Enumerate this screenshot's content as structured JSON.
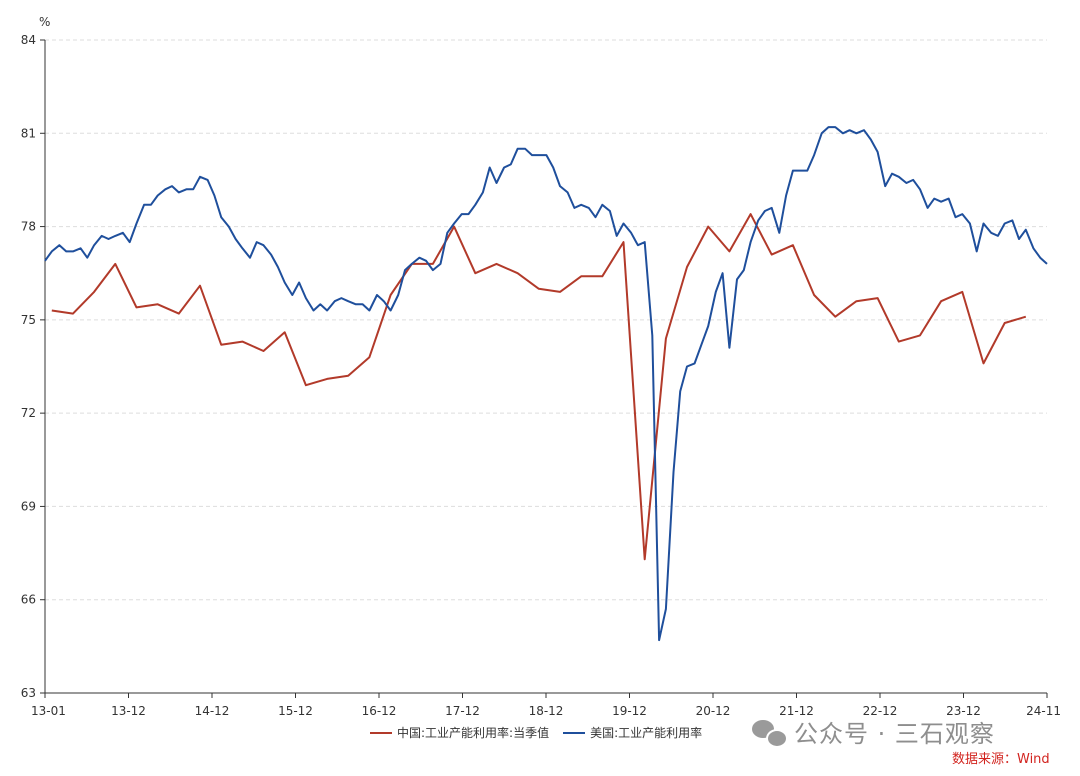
{
  "chart_data": {
    "type": "line",
    "y_unit": "%",
    "ylim": [
      63,
      84
    ],
    "yticks": [
      63,
      66,
      69,
      72,
      75,
      78,
      81,
      84
    ],
    "xticks": [
      "13-01",
      "13-12",
      "14-12",
      "15-12",
      "16-12",
      "17-12",
      "18-12",
      "19-12",
      "20-12",
      "21-12",
      "22-12",
      "23-12",
      "24-11"
    ],
    "grid": true,
    "legend_position": "bottom",
    "colors": {
      "china": "#b23a2a",
      "us": "#1f4f9c"
    },
    "series": [
      {
        "name": "中国:工业产能利用率:当季值",
        "key": "china",
        "points": [
          [
            2013.08,
            75.3
          ],
          [
            2013.33,
            75.2
          ],
          [
            2013.58,
            75.9
          ],
          [
            2013.83,
            76.8
          ],
          [
            2014.08,
            75.4
          ],
          [
            2014.33,
            75.5
          ],
          [
            2014.58,
            75.2
          ],
          [
            2014.83,
            76.1
          ],
          [
            2015.08,
            74.2
          ],
          [
            2015.33,
            74.3
          ],
          [
            2015.58,
            74.0
          ],
          [
            2015.83,
            74.6
          ],
          [
            2016.08,
            72.9
          ],
          [
            2016.33,
            73.1
          ],
          [
            2016.58,
            73.2
          ],
          [
            2016.83,
            73.8
          ],
          [
            2017.08,
            75.8
          ],
          [
            2017.33,
            76.8
          ],
          [
            2017.58,
            76.8
          ],
          [
            2017.83,
            78.0
          ],
          [
            2018.08,
            76.5
          ],
          [
            2018.33,
            76.8
          ],
          [
            2018.58,
            76.5
          ],
          [
            2018.83,
            76.0
          ],
          [
            2019.08,
            75.9
          ],
          [
            2019.33,
            76.4
          ],
          [
            2019.58,
            76.4
          ],
          [
            2019.83,
            77.5
          ],
          [
            2020.08,
            67.3
          ],
          [
            2020.33,
            74.4
          ],
          [
            2020.58,
            76.7
          ],
          [
            2020.83,
            78.0
          ],
          [
            2021.08,
            77.2
          ],
          [
            2021.33,
            78.4
          ],
          [
            2021.58,
            77.1
          ],
          [
            2021.83,
            77.4
          ],
          [
            2022.08,
            75.8
          ],
          [
            2022.33,
            75.1
          ],
          [
            2022.58,
            75.6
          ],
          [
            2022.83,
            75.7
          ],
          [
            2023.08,
            74.3
          ],
          [
            2023.33,
            74.5
          ],
          [
            2023.58,
            75.6
          ],
          [
            2023.83,
            75.9
          ],
          [
            2024.08,
            73.6
          ],
          [
            2024.33,
            74.9
          ],
          [
            2024.58,
            75.1
          ]
        ]
      },
      {
        "name": "美国:工业产能利用率",
        "key": "us",
        "points": [
          [
            2013.0,
            76.9
          ],
          [
            2013.08,
            77.2
          ],
          [
            2013.17,
            77.4
          ],
          [
            2013.25,
            77.2
          ],
          [
            2013.33,
            77.2
          ],
          [
            2013.42,
            77.3
          ],
          [
            2013.5,
            77.0
          ],
          [
            2013.58,
            77.4
          ],
          [
            2013.67,
            77.7
          ],
          [
            2013.75,
            77.6
          ],
          [
            2013.83,
            77.7
          ],
          [
            2013.92,
            77.8
          ],
          [
            2014.0,
            77.5
          ],
          [
            2014.08,
            78.1
          ],
          [
            2014.17,
            78.7
          ],
          [
            2014.25,
            78.7
          ],
          [
            2014.33,
            79.0
          ],
          [
            2014.42,
            79.2
          ],
          [
            2014.5,
            79.3
          ],
          [
            2014.58,
            79.1
          ],
          [
            2014.67,
            79.2
          ],
          [
            2014.75,
            79.2
          ],
          [
            2014.83,
            79.6
          ],
          [
            2014.92,
            79.5
          ],
          [
            2015.0,
            79.0
          ],
          [
            2015.08,
            78.3
          ],
          [
            2015.17,
            78.0
          ],
          [
            2015.25,
            77.6
          ],
          [
            2015.33,
            77.3
          ],
          [
            2015.42,
            77.0
          ],
          [
            2015.5,
            77.5
          ],
          [
            2015.58,
            77.4
          ],
          [
            2015.67,
            77.1
          ],
          [
            2015.75,
            76.7
          ],
          [
            2015.83,
            76.2
          ],
          [
            2015.92,
            75.8
          ],
          [
            2016.0,
            76.2
          ],
          [
            2016.08,
            75.7
          ],
          [
            2016.17,
            75.3
          ],
          [
            2016.25,
            75.5
          ],
          [
            2016.33,
            75.3
          ],
          [
            2016.42,
            75.6
          ],
          [
            2016.5,
            75.7
          ],
          [
            2016.58,
            75.6
          ],
          [
            2016.67,
            75.5
          ],
          [
            2016.75,
            75.5
          ],
          [
            2016.83,
            75.3
          ],
          [
            2016.92,
            75.8
          ],
          [
            2017.0,
            75.6
          ],
          [
            2017.08,
            75.3
          ],
          [
            2017.17,
            75.8
          ],
          [
            2017.25,
            76.6
          ],
          [
            2017.33,
            76.8
          ],
          [
            2017.42,
            77.0
          ],
          [
            2017.5,
            76.9
          ],
          [
            2017.58,
            76.6
          ],
          [
            2017.67,
            76.8
          ],
          [
            2017.75,
            77.8
          ],
          [
            2017.83,
            78.1
          ],
          [
            2017.92,
            78.4
          ],
          [
            2018.0,
            78.4
          ],
          [
            2018.08,
            78.7
          ],
          [
            2018.17,
            79.1
          ],
          [
            2018.25,
            79.9
          ],
          [
            2018.33,
            79.4
          ],
          [
            2018.42,
            79.9
          ],
          [
            2018.5,
            80.0
          ],
          [
            2018.58,
            80.5
          ],
          [
            2018.67,
            80.5
          ],
          [
            2018.75,
            80.3
          ],
          [
            2018.83,
            80.3
          ],
          [
            2018.92,
            80.3
          ],
          [
            2019.0,
            79.9
          ],
          [
            2019.08,
            79.3
          ],
          [
            2019.17,
            79.1
          ],
          [
            2019.25,
            78.6
          ],
          [
            2019.33,
            78.7
          ],
          [
            2019.42,
            78.6
          ],
          [
            2019.5,
            78.3
          ],
          [
            2019.58,
            78.7
          ],
          [
            2019.67,
            78.5
          ],
          [
            2019.75,
            77.7
          ],
          [
            2019.83,
            78.1
          ],
          [
            2019.92,
            77.8
          ],
          [
            2020.0,
            77.4
          ],
          [
            2020.08,
            77.5
          ],
          [
            2020.17,
            74.5
          ],
          [
            2020.25,
            64.7
          ],
          [
            2020.33,
            65.7
          ],
          [
            2020.42,
            70.1
          ],
          [
            2020.5,
            72.7
          ],
          [
            2020.58,
            73.5
          ],
          [
            2020.67,
            73.6
          ],
          [
            2020.75,
            74.2
          ],
          [
            2020.83,
            74.8
          ],
          [
            2020.92,
            75.9
          ],
          [
            2021.0,
            76.5
          ],
          [
            2021.08,
            74.1
          ],
          [
            2021.17,
            76.3
          ],
          [
            2021.25,
            76.6
          ],
          [
            2021.33,
            77.5
          ],
          [
            2021.42,
            78.2
          ],
          [
            2021.5,
            78.5
          ],
          [
            2021.58,
            78.6
          ],
          [
            2021.67,
            77.8
          ],
          [
            2021.75,
            79.0
          ],
          [
            2021.83,
            79.8
          ],
          [
            2021.92,
            79.8
          ],
          [
            2022.0,
            79.8
          ],
          [
            2022.08,
            80.3
          ],
          [
            2022.17,
            81.0
          ],
          [
            2022.25,
            81.2
          ],
          [
            2022.33,
            81.2
          ],
          [
            2022.42,
            81.0
          ],
          [
            2022.5,
            81.1
          ],
          [
            2022.58,
            81.0
          ],
          [
            2022.67,
            81.1
          ],
          [
            2022.75,
            80.8
          ],
          [
            2022.83,
            80.4
          ],
          [
            2022.92,
            79.3
          ],
          [
            2023.0,
            79.7
          ],
          [
            2023.08,
            79.6
          ],
          [
            2023.17,
            79.4
          ],
          [
            2023.25,
            79.5
          ],
          [
            2023.33,
            79.2
          ],
          [
            2023.42,
            78.6
          ],
          [
            2023.5,
            78.9
          ],
          [
            2023.58,
            78.8
          ],
          [
            2023.67,
            78.9
          ],
          [
            2023.75,
            78.3
          ],
          [
            2023.83,
            78.4
          ],
          [
            2023.92,
            78.1
          ],
          [
            2024.0,
            77.2
          ],
          [
            2024.08,
            78.1
          ],
          [
            2024.17,
            77.8
          ],
          [
            2024.25,
            77.7
          ],
          [
            2024.33,
            78.1
          ],
          [
            2024.42,
            78.2
          ],
          [
            2024.5,
            77.6
          ],
          [
            2024.58,
            77.9
          ],
          [
            2024.67,
            77.3
          ],
          [
            2024.75,
            77.0
          ],
          [
            2024.83,
            76.8
          ]
        ]
      }
    ]
  },
  "watermark": {
    "icon": "wechat-icon",
    "text": "公众号 · 三石观察"
  },
  "source": "数据来源：Wind"
}
